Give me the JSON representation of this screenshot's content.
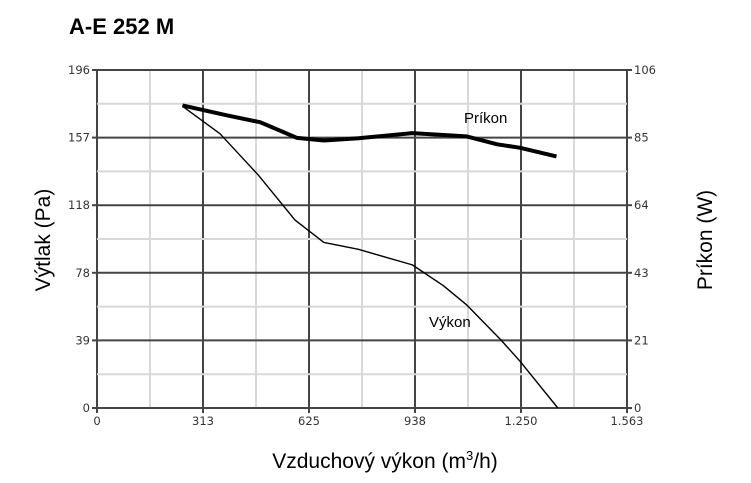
{
  "chart_data": {
    "type": "line",
    "title": "A-E 252 M",
    "xlabel": "Vzduchový výkon (m³/h)",
    "xlabel_parts": {
      "pre": "Vzduchový výkon (m",
      "sup": "3",
      "post": "/h)"
    },
    "ylabel": "Výtlak (Pa)",
    "y2label": "Príkon (W)",
    "xlim": [
      0,
      1563
    ],
    "ylim": [
      0,
      196
    ],
    "y2lim": [
      0,
      106
    ],
    "xticks": [
      "0",
      "313",
      "625",
      "938",
      "1.250",
      "1.563"
    ],
    "yticks": [
      "0",
      "39",
      "78",
      "118",
      "157",
      "196"
    ],
    "y2ticks": [
      "0",
      "21",
      "43",
      "64",
      "85",
      "106"
    ],
    "grid": true,
    "series": [
      {
        "name": "Výkon",
        "axis": "left",
        "x": [
          252,
          363,
          476,
          584,
          669,
          771,
          930,
          1021,
          1089,
          1191,
          1248,
          1359
        ],
        "y": [
          175,
          159,
          135,
          109,
          96,
          92,
          83,
          71,
          60,
          39.5,
          27,
          0
        ]
      },
      {
        "name": "Príkon",
        "axis": "right",
        "x": [
          252,
          386,
          482,
          590,
          669,
          771,
          930,
          1089,
          1180,
          1248,
          1355
        ],
        "y": [
          94.9,
          91.7,
          89.6,
          84.7,
          83.9,
          84.6,
          86.2,
          85.2,
          82.7,
          81.6,
          78.9
        ]
      }
    ]
  }
}
